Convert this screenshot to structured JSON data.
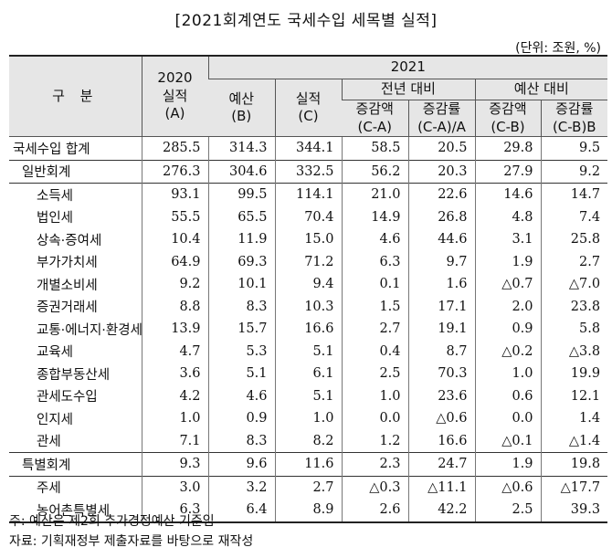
{
  "title": "[2021회계연도 국세수입 세목별 실적]",
  "unit": "(단위: 조원, %)",
  "header": {
    "category": "구 분",
    "y2020": [
      "2020",
      "실적",
      "(A)"
    ],
    "y2021": "2021",
    "budget": [
      "예산",
      "(B)"
    ],
    "actual": [
      "실적",
      "(C)"
    ],
    "vs_prev": "전년 대비",
    "vs_budget": "예산 대비",
    "inc_amt_a": [
      "증감액",
      "(C-A)"
    ],
    "inc_rate_a": [
      "증감률",
      "(C-A)/A"
    ],
    "inc_amt_b": [
      "증감액",
      "(C-B)"
    ],
    "inc_rate_b": [
      "증감률",
      "(C-B)B"
    ]
  },
  "rows": [
    {
      "label": "국세수입 합계",
      "level": 0,
      "group": true,
      "values": [
        "285.5",
        "314.3",
        "344.1",
        "58.5",
        "20.5",
        "29.8",
        "9.5"
      ]
    },
    {
      "label": "일반회계",
      "level": 1,
      "group": true,
      "values": [
        "276.3",
        "304.6",
        "332.5",
        "56.2",
        "20.3",
        "27.9",
        "9.2"
      ]
    },
    {
      "label": "소득세",
      "level": 2,
      "group": true,
      "values": [
        "93.1",
        "99.5",
        "114.1",
        "21.0",
        "22.6",
        "14.6",
        "14.7"
      ]
    },
    {
      "label": "법인세",
      "level": 2,
      "group": false,
      "values": [
        "55.5",
        "65.5",
        "70.4",
        "14.9",
        "26.8",
        "4.8",
        "7.4"
      ]
    },
    {
      "label": "상속·증여세",
      "level": 2,
      "group": false,
      "values": [
        "10.4",
        "11.9",
        "15.0",
        "4.6",
        "44.6",
        "3.1",
        "25.8"
      ]
    },
    {
      "label": "부가가치세",
      "level": 2,
      "group": false,
      "values": [
        "64.9",
        "69.3",
        "71.2",
        "6.3",
        "9.7",
        "1.9",
        "2.7"
      ]
    },
    {
      "label": "개별소비세",
      "level": 2,
      "group": false,
      "values": [
        "9.2",
        "10.1",
        "9.4",
        "0.1",
        "1.6",
        "△0.7",
        "△7.0"
      ]
    },
    {
      "label": "증권거래세",
      "level": 2,
      "group": false,
      "values": [
        "8.8",
        "8.3",
        "10.3",
        "1.5",
        "17.1",
        "2.0",
        "23.8"
      ]
    },
    {
      "label": "교통·에너지·환경세",
      "level": 2,
      "group": false,
      "values": [
        "13.9",
        "15.7",
        "16.6",
        "2.7",
        "19.1",
        "0.9",
        "5.8"
      ]
    },
    {
      "label": "교육세",
      "level": 2,
      "group": false,
      "values": [
        "4.7",
        "5.3",
        "5.1",
        "0.4",
        "8.7",
        "△0.2",
        "△3.8"
      ]
    },
    {
      "label": "종합부동산세",
      "level": 2,
      "group": false,
      "values": [
        "3.6",
        "5.1",
        "6.1",
        "2.5",
        "70.3",
        "1.0",
        "19.9"
      ]
    },
    {
      "label": "관세도수입",
      "level": 2,
      "group": false,
      "values": [
        "4.2",
        "4.6",
        "5.1",
        "1.0",
        "23.6",
        "0.6",
        "12.1"
      ]
    },
    {
      "label": "인지세",
      "level": 2,
      "group": false,
      "values": [
        "1.0",
        "0.9",
        "1.0",
        "0.0",
        "△0.6",
        "0.0",
        "1.4"
      ]
    },
    {
      "label": "관세",
      "level": 2,
      "group": false,
      "values": [
        "7.1",
        "8.3",
        "8.2",
        "1.2",
        "16.6",
        "△0.1",
        "△1.4"
      ]
    },
    {
      "label": "특별회계",
      "level": 1,
      "group": true,
      "values": [
        "9.3",
        "9.6",
        "11.6",
        "2.3",
        "24.7",
        "1.9",
        "19.8"
      ]
    },
    {
      "label": "주세",
      "level": 2,
      "group": true,
      "values": [
        "3.0",
        "3.2",
        "2.7",
        "△0.3",
        "△11.1",
        "△0.6",
        "△17.7"
      ]
    },
    {
      "label": "농어촌특별세",
      "level": 2,
      "group": false,
      "values": [
        "6.3",
        "6.4",
        "8.9",
        "2.6",
        "42.2",
        "2.5",
        "39.3"
      ]
    }
  ],
  "notes": [
    "주: 예산은 제2회 추가경정예산 기준임",
    "자료: 기획재정부 제출자료를 바탕으로 재작성"
  ]
}
